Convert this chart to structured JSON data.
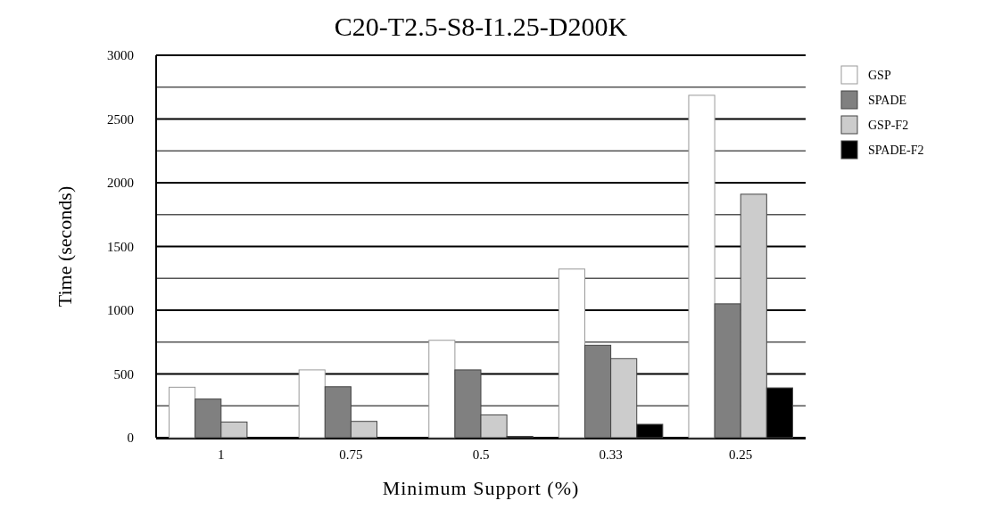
{
  "chart_data": {
    "type": "bar",
    "title": "C20-T2.5-S8-I1.25-D200K",
    "xlabel": "Minimum Support (%)",
    "ylabel": "Time (seconds)",
    "categories": [
      "1",
      "0.75",
      "0.5",
      "0.33",
      "0.25"
    ],
    "series": [
      {
        "name": "GSP",
        "color": "#ffffff",
        "values": [
          396,
          532,
          764,
          1323,
          2686
        ]
      },
      {
        "name": "SPADE",
        "color": "#808080",
        "values": [
          303,
          400,
          532,
          725,
          1050
        ]
      },
      {
        "name": "GSP-F2",
        "color": "#cccccc",
        "values": [
          123,
          128,
          179,
          620,
          1910
        ]
      },
      {
        "name": "SPADE-F2",
        "color": "#000000",
        "values": [
          null,
          null,
          10,
          105,
          391
        ]
      }
    ],
    "ylim": [
      0,
      3000
    ],
    "yticks": [
      0,
      {
        "value": 250,
        "label": null
      },
      500,
      {
        "value": 750,
        "label": null
      },
      1000,
      {
        "value": 1250,
        "label": null
      },
      1500,
      {
        "value": 1750,
        "label": null
      },
      2000,
      {
        "value": 2250,
        "label": null
      },
      2500,
      {
        "value": 2750,
        "label": null
      },
      3000
    ],
    "grid": "y",
    "legend": "top right"
  }
}
